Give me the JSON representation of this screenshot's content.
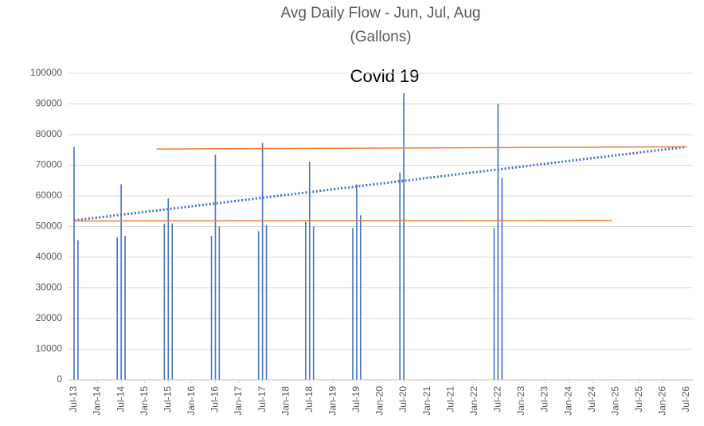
{
  "chart_data": {
    "type": "bar",
    "title": "Avg Daily Flow - Jun, Jul, Aug",
    "subtitle": "(Gallons)",
    "annotation": "Covid 19",
    "grid": true,
    "ylim": [
      0,
      100000
    ],
    "yticks": [
      0,
      10000,
      20000,
      30000,
      40000,
      50000,
      60000,
      70000,
      80000,
      90000,
      100000
    ],
    "xlim": [
      "2013-07",
      "2026-07"
    ],
    "xticks": [
      {
        "value": "2013-07",
        "label": "Jul-13"
      },
      {
        "value": "2014-01",
        "label": "Jan-14"
      },
      {
        "value": "2014-07",
        "label": "Jul-14"
      },
      {
        "value": "2015-01",
        "label": "Jan-15"
      },
      {
        "value": "2015-07",
        "label": "Jul-15"
      },
      {
        "value": "2016-01",
        "label": "Jan-16"
      },
      {
        "value": "2016-07",
        "label": "Jul-16"
      },
      {
        "value": "2017-01",
        "label": "Jan-17"
      },
      {
        "value": "2017-07",
        "label": "Jul-17"
      },
      {
        "value": "2018-01",
        "label": "Jan-18"
      },
      {
        "value": "2018-07",
        "label": "Jul-18"
      },
      {
        "value": "2019-01",
        "label": "Jan-19"
      },
      {
        "value": "2019-07",
        "label": "Jul-19"
      },
      {
        "value": "2020-01",
        "label": "Jan-20"
      },
      {
        "value": "2020-07",
        "label": "Jul-20"
      },
      {
        "value": "2021-01",
        "label": "Jan-21"
      },
      {
        "value": "2021-07",
        "label": "Jul-21"
      },
      {
        "value": "2022-01",
        "label": "Jan-22"
      },
      {
        "value": "2022-07",
        "label": "Jul-22"
      },
      {
        "value": "2023-01",
        "label": "Jan-23"
      },
      {
        "value": "2023-07",
        "label": "Jul-23"
      },
      {
        "value": "2024-01",
        "label": "Jan-24"
      },
      {
        "value": "2024-07",
        "label": "Jul-24"
      },
      {
        "value": "2025-01",
        "label": "Jan-25"
      },
      {
        "value": "2025-07",
        "label": "Jul-25"
      },
      {
        "value": "2026-01",
        "label": "Jan-26"
      },
      {
        "value": "2026-07",
        "label": "Jul-26"
      }
    ],
    "series": [
      {
        "type": "bar",
        "color": "#4472c4",
        "x": [
          "2013-07",
          "2013-08",
          "2014-06",
          "2014-07",
          "2014-08",
          "2015-06",
          "2015-07",
          "2015-08",
          "2016-06",
          "2016-07",
          "2016-08",
          "2017-06",
          "2017-07",
          "2017-08",
          "2018-06",
          "2018-07",
          "2018-08",
          "2019-06",
          "2019-07",
          "2019-08",
          "2020-06",
          "2020-07",
          "2022-06",
          "2022-07",
          "2022-08"
        ],
        "values": [
          76000,
          45500,
          46500,
          63800,
          47000,
          51000,
          59200,
          51000,
          47000,
          73500,
          50000,
          48500,
          77300,
          50500,
          51500,
          71200,
          50000,
          49500,
          63800,
          53700,
          67600,
          93500,
          49500,
          90000,
          65800
        ]
      },
      {
        "type": "line",
        "style": "dotted",
        "color": "#4472c4",
        "x": [
          "2013-07",
          "2026-07"
        ],
        "values": [
          52000,
          76000
        ]
      },
      {
        "type": "line",
        "style": "solid",
        "color": "#ed7d31",
        "x": [
          "2015-04",
          "2026-07"
        ],
        "values": [
          75300,
          76000
        ]
      },
      {
        "type": "line",
        "style": "solid",
        "color": "#ed7d31",
        "x": [
          "2013-07",
          "2024-12"
        ],
        "values": [
          51800,
          52000
        ]
      }
    ]
  }
}
